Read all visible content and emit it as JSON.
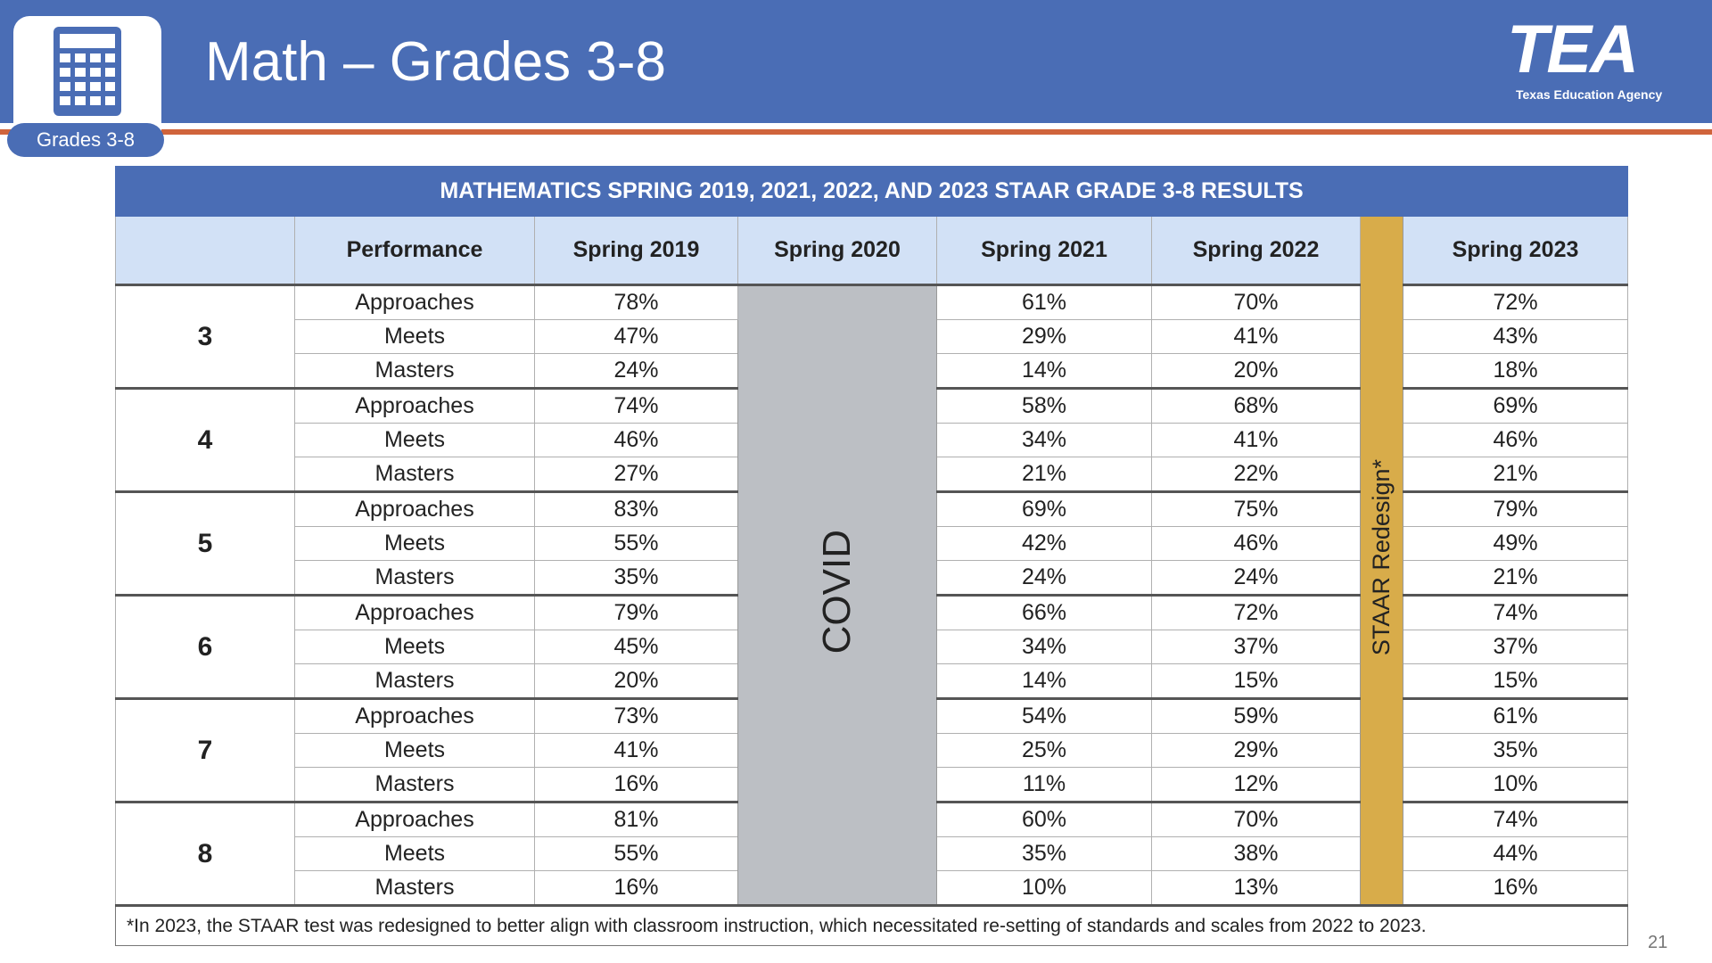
{
  "header": {
    "title": "Math – Grades 3-8",
    "badge": "Grades 3-8",
    "logo": "TEA",
    "logo_subtitle": "Texas Education Agency"
  },
  "table": {
    "title": "MATHEMATICS SPRING 2019, 2021, 2022, AND 2023 STAAR GRADE 3-8 RESULTS",
    "columns": [
      "Performance",
      "Spring 2019",
      "Spring 2020",
      "Spring 2021",
      "Spring 2022",
      "Spring 2023"
    ],
    "covid": "COVID",
    "redesign": "STAAR Redesign*",
    "groups": [
      {
        "grade": "3",
        "rows": [
          {
            "level": "Approaches",
            "values": [
              "78%",
              "61%",
              "70%",
              "72%"
            ]
          },
          {
            "level": "Meets",
            "values": [
              "47%",
              "29%",
              "41%",
              "43%"
            ]
          },
          {
            "level": "Masters",
            "values": [
              "24%",
              "14%",
              "20%",
              "18%"
            ]
          }
        ]
      },
      {
        "grade": "4",
        "rows": [
          {
            "level": "Approaches",
            "values": [
              "74%",
              "58%",
              "68%",
              "69%"
            ]
          },
          {
            "level": "Meets",
            "values": [
              "46%",
              "34%",
              "41%",
              "46%"
            ]
          },
          {
            "level": "Masters",
            "values": [
              "27%",
              "21%",
              "22%",
              "21%"
            ]
          }
        ]
      },
      {
        "grade": "5",
        "rows": [
          {
            "level": "Approaches",
            "values": [
              "83%",
              "69%",
              "75%",
              "79%"
            ]
          },
          {
            "level": "Meets",
            "values": [
              "55%",
              "42%",
              "46%",
              "49%"
            ]
          },
          {
            "level": "Masters",
            "values": [
              "35%",
              "24%",
              "24%",
              "21%"
            ]
          }
        ]
      },
      {
        "grade": "6",
        "rows": [
          {
            "level": "Approaches",
            "values": [
              "79%",
              "66%",
              "72%",
              "74%"
            ]
          },
          {
            "level": "Meets",
            "values": [
              "45%",
              "34%",
              "37%",
              "37%"
            ]
          },
          {
            "level": "Masters",
            "values": [
              "20%",
              "14%",
              "15%",
              "15%"
            ]
          }
        ]
      },
      {
        "grade": "7",
        "rows": [
          {
            "level": "Approaches",
            "values": [
              "73%",
              "54%",
              "59%",
              "61%"
            ]
          },
          {
            "level": "Meets",
            "values": [
              "41%",
              "25%",
              "29%",
              "35%"
            ]
          },
          {
            "level": "Masters",
            "values": [
              "16%",
              "11%",
              "12%",
              "10%"
            ]
          }
        ]
      },
      {
        "grade": "8",
        "rows": [
          {
            "level": "Approaches",
            "values": [
              "81%",
              "60%",
              "70%",
              "74%"
            ]
          },
          {
            "level": "Meets",
            "values": [
              "55%",
              "35%",
              "38%",
              "44%"
            ]
          },
          {
            "level": "Masters",
            "values": [
              "16%",
              "10%",
              "13%",
              "16%"
            ]
          }
        ]
      }
    ],
    "footnote": "*In 2023, the STAAR test was redesigned to better align with classroom instruction, which necessitated re-setting of standards and scales from 2022 to 2023."
  },
  "page_number": "21"
}
